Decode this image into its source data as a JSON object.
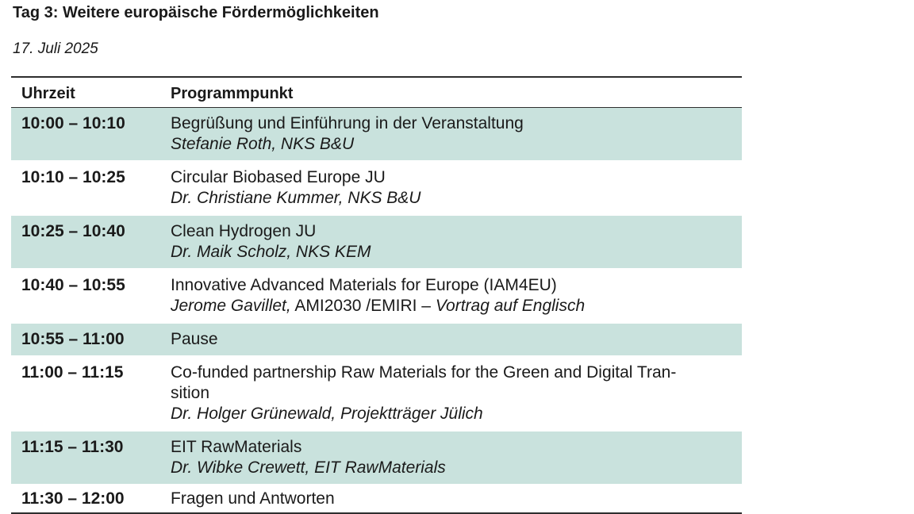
{
  "title": "Tag 3: Weitere europäische Fördermöglichkeiten",
  "date": "17. Juli 2025",
  "table": {
    "headers": {
      "time": "Uhrzeit",
      "program": "Programmpunkt"
    },
    "colors": {
      "shaded_row": "#c9e2dd",
      "rule": "#2e2e2e"
    },
    "rows": [
      {
        "time": "10:00 – 10:10",
        "title": "Begrüßung und Einführung in der Veranstaltung",
        "speaker": "Stefanie Roth, NKS B&U",
        "shaded": true
      },
      {
        "time": "10:10 – 10:25",
        "title": "Circular Biobased Europe JU",
        "speaker": "Dr. Christiane Kummer, NKS B&U",
        "shaded": false
      },
      {
        "time": "10:25 – 10:40",
        "title": "Clean Hydrogen JU",
        "speaker": "Dr. Maik Scholz, NKS KEM",
        "shaded": true
      },
      {
        "time": "10:40 – 10:55",
        "title": "Innovative Advanced Materials for Europe (IAM4EU)",
        "speaker_name": "Jerome Gavillet,",
        "speaker_org": " AMI2030 /EMIRI – ",
        "speaker_note": "Vortrag auf Englisch",
        "shaded": false
      },
      {
        "time": "10:55 – 11:00",
        "title": "Pause",
        "shaded": true
      },
      {
        "time": "11:00 – 11:15",
        "title_line1": "Co-funded partnership Raw Materials for the Green and Digital Tran-",
        "title_line2": "sition",
        "speaker": "Dr. Holger Grünewald, Projektträger Jülich",
        "shaded": false
      },
      {
        "time": "11:15 – 11:30",
        "title": "EIT RawMaterials",
        "speaker": "Dr. Wibke Crewett, EIT RawMaterials",
        "shaded": true
      },
      {
        "time": "11:30 – 12:00",
        "title": "Fragen und Antworten",
        "shaded": false
      }
    ]
  }
}
